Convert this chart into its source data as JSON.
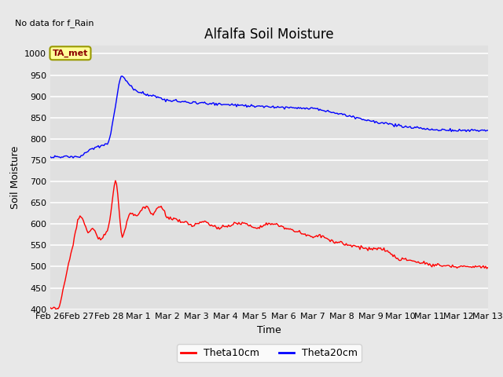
{
  "title": "Alfalfa Soil Moisture",
  "xlabel": "Time",
  "ylabel": "Soil Moisture",
  "no_data_text": "No data for f_Rain",
  "legend_label": "TA_met",
  "ylim": [
    400,
    1020
  ],
  "yticks": [
    400,
    450,
    500,
    550,
    600,
    650,
    700,
    750,
    800,
    850,
    900,
    950,
    1000
  ],
  "xtick_labels": [
    "Feb 26",
    "Feb 27",
    "Feb 28",
    "Mar 1",
    "Mar 2",
    "Mar 3",
    "Mar 4",
    "Mar 5",
    "Mar 6",
    "Mar 7",
    "Mar 8",
    "Mar 9",
    "Mar 10",
    "Mar 11",
    "Mar 12",
    "Mar 13"
  ],
  "line1_color": "#FF0000",
  "line2_color": "#0000FF",
  "line1_label": "Theta10cm",
  "line2_label": "Theta20cm",
  "bg_color": "#E8E8E8",
  "plot_bg_color": "#E0E0E0",
  "title_fontsize": 12,
  "axis_label_fontsize": 9,
  "tick_fontsize": 8
}
